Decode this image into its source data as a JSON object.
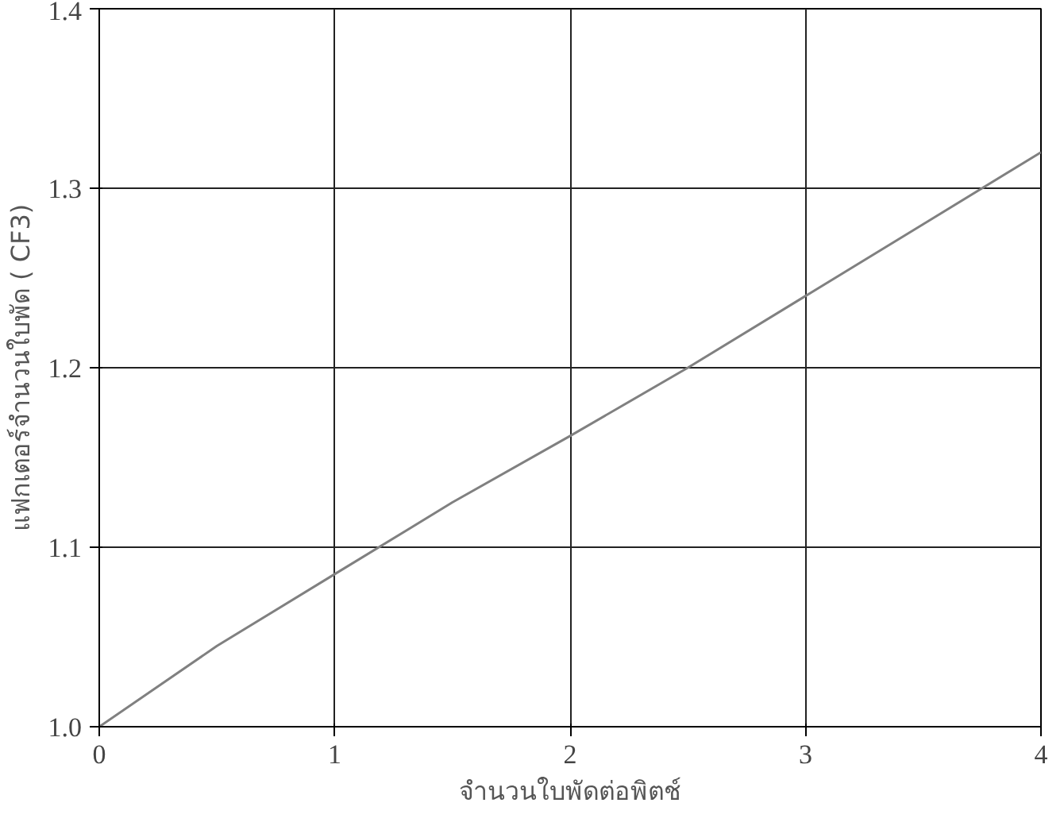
{
  "chart_data": {
    "type": "line",
    "xlabel": "จำนวนใบพัดต่อพิตช์",
    "ylabel": "แฟกเตอร์จำนวนใบพัด ( CF3)",
    "x": [
      0,
      0.5,
      1,
      1.5,
      2,
      2.5,
      3,
      3.5,
      4
    ],
    "series": [
      {
        "color": "#808080",
        "values": [
          1.0,
          1.045,
          1.085,
          1.125,
          1.162,
          1.2,
          1.24,
          1.28,
          1.32
        ]
      }
    ],
    "xlim": [
      0,
      4
    ],
    "ylim": [
      1.0,
      1.4
    ],
    "xticks": [
      0,
      1,
      2,
      3,
      4
    ],
    "yticks": [
      {
        "value": 1.0,
        "label": "1.0"
      },
      1.1,
      1.2,
      1.3,
      1.4
    ],
    "grid": true,
    "marker": "none",
    "line_style": "solid"
  }
}
